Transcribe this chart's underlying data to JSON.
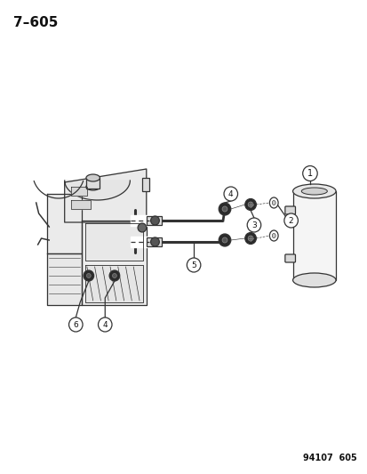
{
  "title": "7–605",
  "footer": "94107  605",
  "bg_color": "#ffffff",
  "text_color": "#2a2a2a",
  "fig_width": 4.14,
  "fig_height": 5.33,
  "dpi": 100,
  "lw": 0.9,
  "engine_color": "#cccccc",
  "line_color": "#333333"
}
